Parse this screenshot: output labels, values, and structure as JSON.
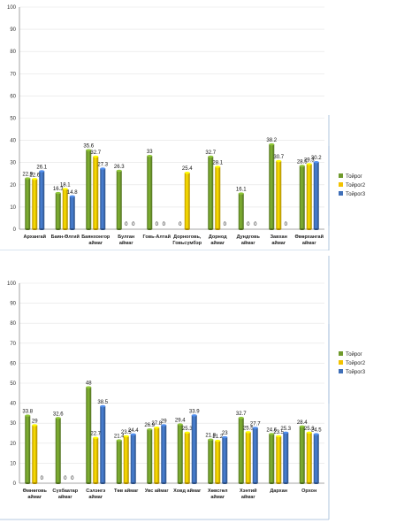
{
  "chart_data": [
    {
      "type": "bar",
      "ylim": [
        0,
        100
      ],
      "yticks": [
        0,
        10,
        20,
        30,
        40,
        50,
        60,
        70,
        80,
        90,
        100
      ],
      "legend_position": "right",
      "categories": [
        [
          "Архангай"
        ],
        [
          "Баян-Өлгий"
        ],
        [
          "Баянхонгор",
          "аймаг"
        ],
        [
          "Булган",
          "аймаг"
        ],
        [
          "Говь-Алтай"
        ],
        [
          "Дорноговь,",
          "Говьсүмбэр"
        ],
        [
          "Дорнод",
          "аймаг"
        ],
        [
          "Дундговь",
          "аймаг"
        ],
        [
          "Завхан",
          "аймаг"
        ],
        [
          "Өвөрхангай",
          "аймаг"
        ]
      ],
      "series": [
        {
          "name": "Тойрог",
          "color": "#6f9a2c",
          "values": [
            22.9,
            16.3,
            35.6,
            26.3,
            33,
            0,
            32.7,
            16.1,
            38.2,
            28.5
          ]
        },
        {
          "name": "Тойрог2",
          "color": "#f2c200",
          "values": [
            22.6,
            18.1,
            32.7,
            0,
            0,
            25.4,
            28.1,
            0,
            30.7,
            29.3
          ]
        },
        {
          "name": "Тойрог3",
          "color": "#3f6fb8",
          "values": [
            26.1,
            14.8,
            27.3,
            0,
            0,
            null,
            0,
            0,
            0,
            30.2
          ]
        }
      ]
    },
    {
      "type": "bar",
      "ylim": [
        0,
        100
      ],
      "yticks": [
        0,
        10,
        20,
        30,
        40,
        50,
        60,
        70,
        80,
        90,
        100
      ],
      "legend_position": "right",
      "categories": [
        [
          "Өмнөговь",
          "аймаг"
        ],
        [
          "Сүхбаатар",
          "аймаг"
        ],
        [
          "Сэлэнгэ",
          "аймаг"
        ],
        [
          "Төв аймаг"
        ],
        [
          "Увс аймаг"
        ],
        [
          "Ховд аймаг"
        ],
        [
          "Хөвсгөл",
          "аймаг"
        ],
        [
          "Хэнтий",
          "аймаг"
        ],
        [
          "Дархан"
        ],
        [
          "Орхон"
        ]
      ],
      "series": [
        {
          "name": "Тойрог",
          "color": "#6f9a2c",
          "values": [
            33.8,
            32.6,
            48,
            21.4,
            26.9,
            29.4,
            21.8,
            32.7,
            24.6,
            28.4
          ]
        },
        {
          "name": "Тойрог2",
          "color": "#f2c200",
          "values": [
            29,
            0,
            22.7,
            23.5,
            27.8,
            25.3,
            21.2,
            25.5,
            23.5,
            25.3
          ]
        },
        {
          "name": "Тойрог3",
          "color": "#3f6fb8",
          "values": [
            0,
            0,
            38.5,
            24.4,
            29,
            33.9,
            23,
            27.7,
            25.3,
            24.5
          ]
        }
      ]
    }
  ]
}
